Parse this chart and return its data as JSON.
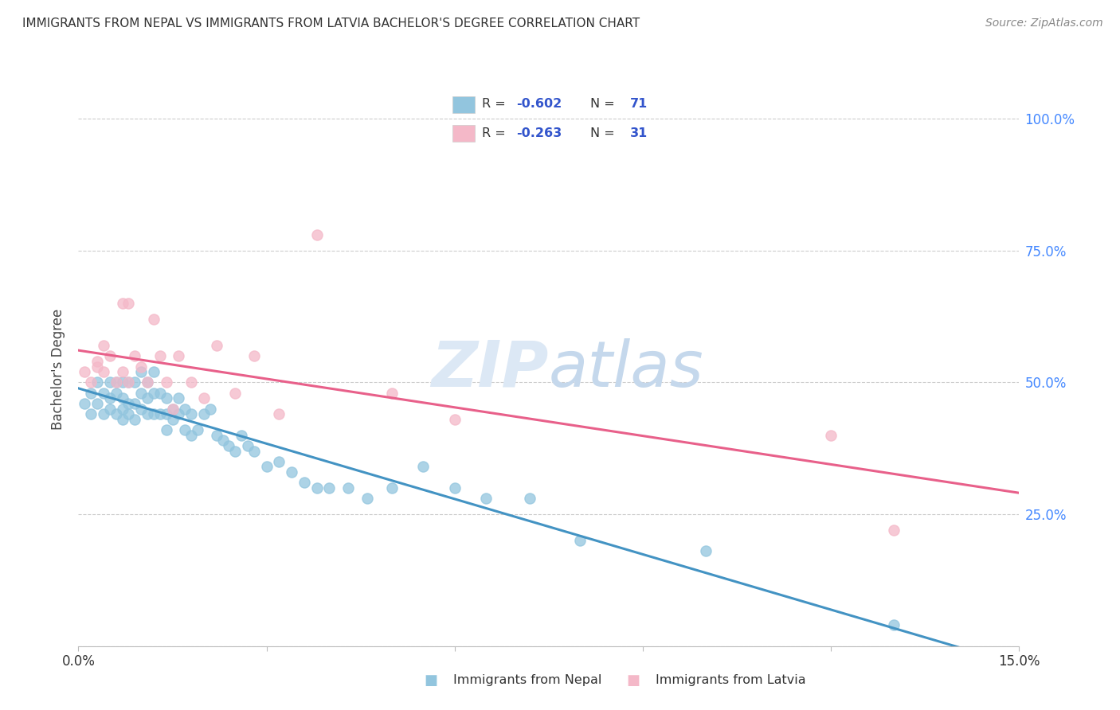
{
  "title": "IMMIGRANTS FROM NEPAL VS IMMIGRANTS FROM LATVIA BACHELOR'S DEGREE CORRELATION CHART",
  "source": "Source: ZipAtlas.com",
  "ylabel": "Bachelor's Degree",
  "nepal_R": -0.602,
  "nepal_N": 71,
  "latvia_R": -0.263,
  "latvia_N": 31,
  "nepal_color": "#92c5de",
  "latvia_color": "#f4b8c8",
  "nepal_line_color": "#4393c3",
  "latvia_line_color": "#e8608a",
  "xlim": [
    0.0,
    0.15
  ],
  "ylim": [
    0.0,
    1.05
  ],
  "nepal_x": [
    0.001,
    0.002,
    0.002,
    0.003,
    0.003,
    0.004,
    0.004,
    0.005,
    0.005,
    0.005,
    0.006,
    0.006,
    0.006,
    0.007,
    0.007,
    0.007,
    0.007,
    0.008,
    0.008,
    0.008,
    0.009,
    0.009,
    0.009,
    0.01,
    0.01,
    0.01,
    0.011,
    0.011,
    0.011,
    0.012,
    0.012,
    0.012,
    0.013,
    0.013,
    0.014,
    0.014,
    0.014,
    0.015,
    0.015,
    0.016,
    0.016,
    0.017,
    0.017,
    0.018,
    0.018,
    0.019,
    0.02,
    0.021,
    0.022,
    0.023,
    0.024,
    0.025,
    0.026,
    0.027,
    0.028,
    0.03,
    0.032,
    0.034,
    0.036,
    0.038,
    0.04,
    0.043,
    0.046,
    0.05,
    0.055,
    0.06,
    0.065,
    0.072,
    0.08,
    0.1,
    0.13
  ],
  "nepal_y": [
    0.46,
    0.48,
    0.44,
    0.46,
    0.5,
    0.48,
    0.44,
    0.5,
    0.47,
    0.45,
    0.5,
    0.48,
    0.44,
    0.5,
    0.47,
    0.45,
    0.43,
    0.5,
    0.46,
    0.44,
    0.5,
    0.46,
    0.43,
    0.52,
    0.48,
    0.45,
    0.5,
    0.47,
    0.44,
    0.52,
    0.48,
    0.44,
    0.48,
    0.44,
    0.47,
    0.44,
    0.41,
    0.45,
    0.43,
    0.47,
    0.44,
    0.45,
    0.41,
    0.44,
    0.4,
    0.41,
    0.44,
    0.45,
    0.4,
    0.39,
    0.38,
    0.37,
    0.4,
    0.38,
    0.37,
    0.34,
    0.35,
    0.33,
    0.31,
    0.3,
    0.3,
    0.3,
    0.28,
    0.3,
    0.34,
    0.3,
    0.28,
    0.28,
    0.2,
    0.18,
    0.04
  ],
  "latvia_x": [
    0.001,
    0.002,
    0.003,
    0.003,
    0.004,
    0.004,
    0.005,
    0.006,
    0.007,
    0.007,
    0.008,
    0.008,
    0.009,
    0.01,
    0.011,
    0.012,
    0.013,
    0.014,
    0.015,
    0.016,
    0.018,
    0.02,
    0.022,
    0.025,
    0.028,
    0.032,
    0.038,
    0.05,
    0.06,
    0.12,
    0.13
  ],
  "latvia_y": [
    0.52,
    0.5,
    0.54,
    0.53,
    0.52,
    0.57,
    0.55,
    0.5,
    0.65,
    0.52,
    0.5,
    0.65,
    0.55,
    0.53,
    0.5,
    0.62,
    0.55,
    0.5,
    0.45,
    0.55,
    0.5,
    0.47,
    0.57,
    0.48,
    0.55,
    0.44,
    0.78,
    0.48,
    0.43,
    0.4,
    0.22
  ]
}
